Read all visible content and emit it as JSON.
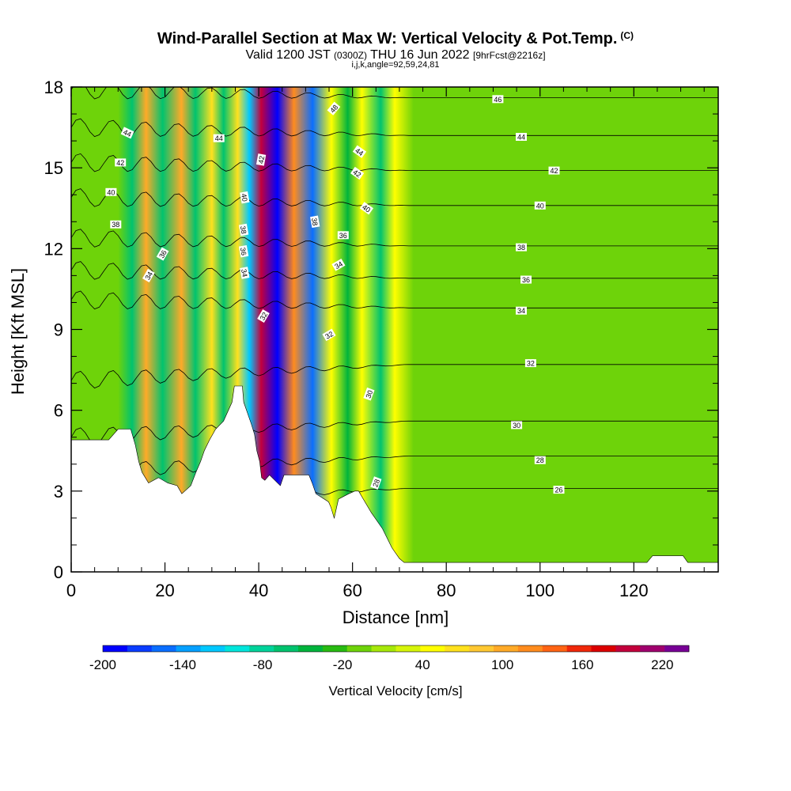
{
  "title": {
    "main": "Wind-Parallel Section at Max W: Vertical Velocity & Pot.Temp.",
    "copyright": "(C)",
    "valid_prefix": "Valid 1200 JST",
    "valid_utc": "(0300Z)",
    "valid_date": "THU 16 Jun 2022",
    "forecast": "[9hrFcst@2216z]",
    "section_params": "i,j,k,angle=92,59,24,81"
  },
  "chart_data": {
    "type": "heatmap",
    "xlabel": "Distance [nm]",
    "ylabel": "Height [Kft MSL]",
    "xlim": [
      0,
      138
    ],
    "ylim": [
      0,
      18
    ],
    "xticks": [
      0,
      20,
      40,
      60,
      80,
      100,
      120
    ],
    "yticks": [
      0,
      3,
      6,
      9,
      12,
      15,
      18
    ],
    "colorbar": {
      "label": "Vertical Velocity [cm/s]",
      "tick_labels": [
        -200,
        -140,
        -80,
        -20,
        40,
        100,
        160,
        220
      ],
      "min": -200,
      "max": 240,
      "step": 20,
      "colors": [
        "#0000ff",
        "#0a3cff",
        "#0a6eff",
        "#05a0ff",
        "#00c8ff",
        "#00e6dc",
        "#00d39b",
        "#00c36e",
        "#00b43c",
        "#28bb12",
        "#6ed30a",
        "#a6e80a",
        "#d6f50a",
        "#ffff00",
        "#ffe11e",
        "#ffc832",
        "#ffaa28",
        "#ff8c1e",
        "#ff6414",
        "#f0280a",
        "#dc0000",
        "#c3003c",
        "#a0006e",
        "#780096"
      ]
    },
    "terrain_profile": [
      [
        0,
        4.9
      ],
      [
        8,
        4.9
      ],
      [
        10,
        5.3
      ],
      [
        12.7,
        5.3
      ],
      [
        13.7,
        4.7
      ],
      [
        14.4,
        4.1
      ],
      [
        15.1,
        3.7
      ],
      [
        15.8,
        3.5
      ],
      [
        16.5,
        3.3
      ],
      [
        18.6,
        3.5
      ],
      [
        20.6,
        3.3
      ],
      [
        22.6,
        3.2
      ],
      [
        23.6,
        2.9
      ],
      [
        25.5,
        3.2
      ],
      [
        26.6,
        3.7
      ],
      [
        27.6,
        4.1
      ],
      [
        28.4,
        4.5
      ],
      [
        29.5,
        4.9
      ],
      [
        30.8,
        5.3
      ],
      [
        32.5,
        5.6
      ],
      [
        34.3,
        6.3
      ],
      [
        34.8,
        6.9
      ],
      [
        36.5,
        6.9
      ],
      [
        36.8,
        6.3
      ],
      [
        37.6,
        5.9
      ],
      [
        38.4,
        5.5
      ],
      [
        39.1,
        5.1
      ],
      [
        39.6,
        4.5
      ],
      [
        40.2,
        4.1
      ],
      [
        40.6,
        3.5
      ],
      [
        41.3,
        3.4
      ],
      [
        42.3,
        3.6
      ],
      [
        44.6,
        3.2
      ],
      [
        45.4,
        3.6
      ],
      [
        50.7,
        3.6
      ],
      [
        51.4,
        3.3
      ],
      [
        52.2,
        2.9
      ],
      [
        54.9,
        2.6
      ],
      [
        55.4,
        2.4
      ],
      [
        56.1,
        2.0
      ],
      [
        57.0,
        2.7
      ],
      [
        59.2,
        2.9
      ],
      [
        60.5,
        3.0
      ],
      [
        61.3,
        3.0
      ],
      [
        62.3,
        2.7
      ],
      [
        64.0,
        2.2
      ],
      [
        66.4,
        1.6
      ],
      [
        68.4,
        0.9
      ],
      [
        70.0,
        0.5
      ],
      [
        71.0,
        0.35
      ],
      [
        122.8,
        0.35
      ],
      [
        124.0,
        0.6
      ],
      [
        130.5,
        0.6
      ],
      [
        131.5,
        0.35
      ],
      [
        134.0,
        0.35
      ],
      [
        138,
        0.35
      ]
    ],
    "vertical_velocity_bands": [
      {
        "x": 10.0,
        "w_cm_s": 0
      },
      {
        "x": 13.0,
        "w_cm_s": -50
      },
      {
        "x": 16.0,
        "w_cm_s": 120
      },
      {
        "x": 19.5,
        "w_cm_s": -60
      },
      {
        "x": 23.5,
        "w_cm_s": 120
      },
      {
        "x": 26.5,
        "w_cm_s": -60
      },
      {
        "x": 30.0,
        "w_cm_s": 80
      },
      {
        "x": 32.5,
        "w_cm_s": -50
      },
      {
        "x": 35.5,
        "w_cm_s": 80
      },
      {
        "x": 38.0,
        "w_cm_s": -120
      },
      {
        "x": 40.5,
        "w_cm_s": 230
      },
      {
        "x": 44.0,
        "w_cm_s": -200
      },
      {
        "x": 47.5,
        "w_cm_s": 150
      },
      {
        "x": 51.5,
        "w_cm_s": -150
      },
      {
        "x": 55.5,
        "w_cm_s": 60
      },
      {
        "x": 59.0,
        "w_cm_s": -40
      },
      {
        "x": 62.0,
        "w_cm_s": 70
      },
      {
        "x": 66.0,
        "w_cm_s": -50
      },
      {
        "x": 69.0,
        "w_cm_s": 70
      },
      {
        "x": 73.0,
        "w_cm_s": 0
      }
    ],
    "potential_temperature_contours": [
      {
        "label": "26",
        "far_y": 3.1,
        "label_x": 104,
        "label_y": 3.05
      },
      {
        "label": "28",
        "far_y": 4.3,
        "label_x": 100,
        "label_y": 4.15
      },
      {
        "label": "30",
        "far_y": 5.6,
        "label_x": 95,
        "label_y": 5.45
      },
      {
        "label": "32",
        "far_y": 7.7,
        "label_x": 98,
        "label_y": 7.75
      },
      {
        "label": "34",
        "far_y": 9.8,
        "label_x": 96,
        "label_y": 9.7
      },
      {
        "label": "36",
        "far_y": 10.9,
        "label_x": 97,
        "label_y": 10.85
      },
      {
        "label": "38",
        "far_y": 12.1,
        "label_x": 96,
        "label_y": 12.05
      },
      {
        "label": "40",
        "far_y": 13.6,
        "label_x": 100,
        "label_y": 13.6
      },
      {
        "label": "42",
        "far_y": 14.9,
        "label_x": 103,
        "label_y": 14.9
      },
      {
        "label": "44",
        "far_y": 16.2,
        "label_x": 96,
        "label_y": 16.15
      },
      {
        "label": "46",
        "far_y": 17.6,
        "label_x": 91,
        "label_y": 17.55
      }
    ],
    "left_contour_labels": [
      {
        "label": "44",
        "x": 12,
        "y": 16.3,
        "rot": 25
      },
      {
        "label": "42",
        "x": 10.5,
        "y": 15.2,
        "rot": 0
      },
      {
        "label": "40",
        "x": 8.5,
        "y": 14.1,
        "rot": 0
      },
      {
        "label": "38",
        "x": 9.5,
        "y": 12.9,
        "rot": 0
      },
      {
        "label": "36",
        "x": 19.5,
        "y": 11.8,
        "rot": -60
      },
      {
        "label": "34",
        "x": 16.5,
        "y": 11.0,
        "rot": -60
      },
      {
        "label": "44",
        "x": 31.5,
        "y": 16.1,
        "rot": 0
      },
      {
        "label": "42",
        "x": 40.5,
        "y": 15.3,
        "rot": -80
      },
      {
        "label": "40",
        "x": 37.0,
        "y": 13.9,
        "rot": 80
      },
      {
        "label": "38",
        "x": 36.8,
        "y": 12.7,
        "rot": 80
      },
      {
        "label": "36",
        "x": 36.8,
        "y": 11.9,
        "rot": 80
      },
      {
        "label": "34",
        "x": 37.0,
        "y": 11.1,
        "rot": 80
      },
      {
        "label": "32",
        "x": 41.0,
        "y": 9.5,
        "rot": -60
      },
      {
        "label": "48",
        "x": 56.0,
        "y": 17.2,
        "rot": -50
      },
      {
        "label": "44",
        "x": 61.5,
        "y": 15.6,
        "rot": 35
      },
      {
        "label": "42",
        "x": 61.0,
        "y": 14.8,
        "rot": 35
      },
      {
        "label": "40",
        "x": 63.0,
        "y": 13.5,
        "rot": 35
      },
      {
        "label": "38",
        "x": 52.0,
        "y": 13.0,
        "rot": 80
      },
      {
        "label": "36",
        "x": 58.0,
        "y": 12.5,
        "rot": 0
      },
      {
        "label": "34",
        "x": 57.0,
        "y": 11.4,
        "rot": -30
      },
      {
        "label": "32",
        "x": 55.0,
        "y": 8.8,
        "rot": -30
      },
      {
        "label": "30",
        "x": 63.5,
        "y": 6.6,
        "rot": -70
      },
      {
        "label": "28",
        "x": 65.0,
        "y": 3.3,
        "rot": -70
      }
    ]
  }
}
